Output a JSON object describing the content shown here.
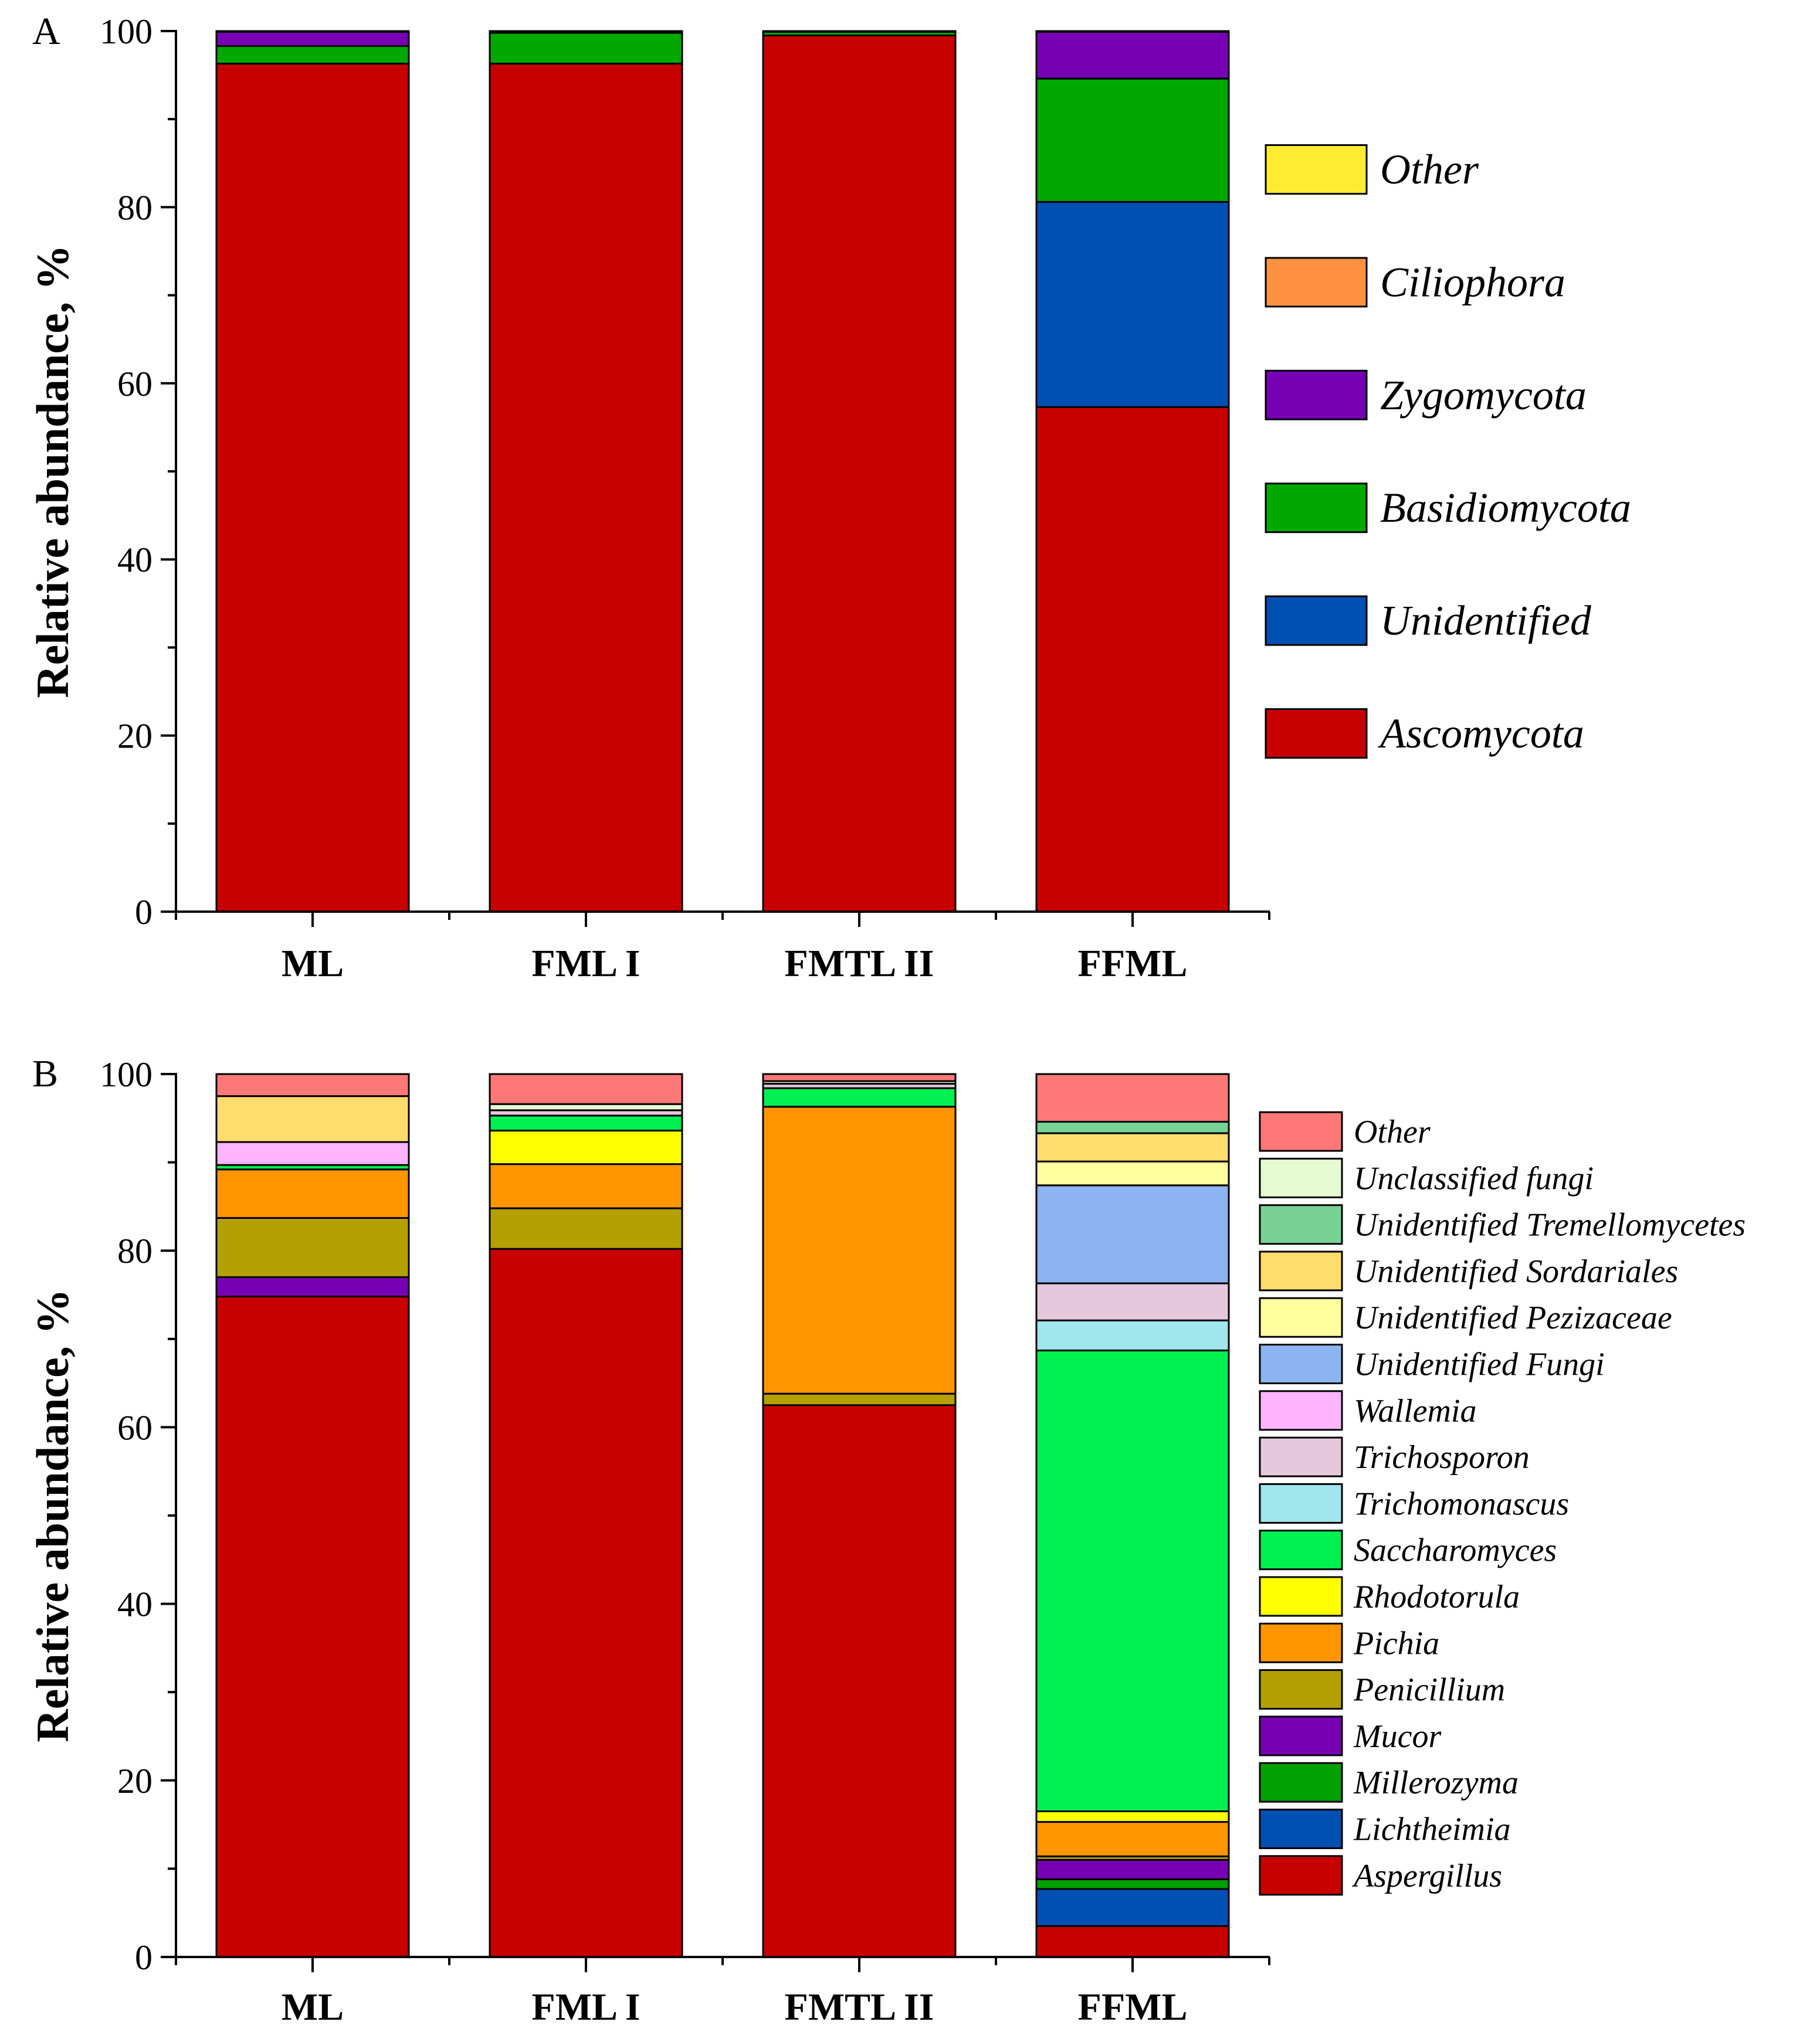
{
  "chart_data": [
    {
      "type": "stacked-bar",
      "panel": "A",
      "ylabel": "Relative abundance, %",
      "ylim": [
        0,
        100
      ],
      "yticks": [
        "0",
        "20",
        "40",
        "60",
        "80",
        "100"
      ],
      "categories": [
        "ML",
        "FML I",
        "FMTL II",
        "FFML"
      ],
      "series": [
        {
          "name": "Ascomycota",
          "color": "#c80000",
          "values": [
            96.3,
            96.3,
            99.5,
            57.3
          ]
        },
        {
          "name": "Unidentified",
          "color": "#0050b4",
          "values": [
            0.0,
            0.0,
            0.0,
            23.3
          ]
        },
        {
          "name": "Basidiomycota",
          "color": "#00a800",
          "values": [
            2.0,
            3.5,
            0.4,
            14.0
          ]
        },
        {
          "name": "Zygomycota",
          "color": "#7800b4",
          "values": [
            1.6,
            0.1,
            0.0,
            5.3
          ]
        },
        {
          "name": "Ciliophora",
          "color": "#ff9140",
          "values": [
            0.0,
            0.0,
            0.0,
            0.0
          ]
        },
        {
          "name": "Other",
          "color": "#ffeb32",
          "values": [
            0.1,
            0.1,
            0.1,
            0.1
          ]
        }
      ],
      "legend_order": [
        "Other",
        "Ciliophora",
        "Zygomycota",
        "Basidiomycota",
        "Unidentified",
        "Ascomycota"
      ]
    },
    {
      "type": "stacked-bar",
      "panel": "B",
      "ylabel": "Relative abundance, %",
      "ylim": [
        0,
        100
      ],
      "yticks": [
        "0",
        "20",
        "40",
        "60",
        "80",
        "100"
      ],
      "categories": [
        "ML",
        "FML I",
        "FMTL II",
        "FFML"
      ],
      "series": [
        {
          "name": "Aspergillus",
          "color": "#c80000",
          "values": [
            74.8,
            80.2,
            62.5,
            3.5
          ]
        },
        {
          "name": "Lichtheimia",
          "color": "#0050b4",
          "values": [
            0.0,
            0.0,
            0.0,
            4.2
          ]
        },
        {
          "name": "Millerozyma",
          "color": "#00a000",
          "values": [
            0.0,
            0.0,
            0.0,
            1.1
          ]
        },
        {
          "name": "Mucor",
          "color": "#7800b4",
          "values": [
            2.2,
            0.0,
            0.0,
            2.2
          ]
        },
        {
          "name": "Penicillium",
          "color": "#b4a000",
          "values": [
            6.7,
            4.6,
            1.3,
            0.4
          ]
        },
        {
          "name": "Pichia",
          "color": "#ff9600",
          "values": [
            5.5,
            5.0,
            32.5,
            3.9
          ]
        },
        {
          "name": "Rhodotorula",
          "color": "#ffff00",
          "values": [
            0.0,
            3.8,
            0.0,
            1.2
          ]
        },
        {
          "name": "Saccharomyces",
          "color": "#00f050",
          "values": [
            0.5,
            1.7,
            2.1,
            52.2
          ]
        },
        {
          "name": "Trichomonascus",
          "color": "#a0e6ec",
          "values": [
            0.0,
            0.0,
            0.0,
            3.4
          ]
        },
        {
          "name": "Trichosporon",
          "color": "#e6c8dc",
          "values": [
            0.0,
            0.6,
            0.5,
            4.2
          ]
        },
        {
          "name": "Wallemia",
          "color": "#ffb4ff",
          "values": [
            2.6,
            0.0,
            0.0,
            0.0
          ]
        },
        {
          "name": "Unidentified Fungi",
          "color": "#8cb4f0",
          "values": [
            0.0,
            0.0,
            0.0,
            11.1
          ]
        },
        {
          "name": "Unidentified Pezizaceae",
          "color": "#ffffa0",
          "values": [
            0.0,
            0.0,
            0.0,
            2.7
          ]
        },
        {
          "name": "Unidentified Sordariales",
          "color": "#ffdc6e",
          "values": [
            5.2,
            0.0,
            0.0,
            3.2
          ]
        },
        {
          "name": "Unidentified Tremellomycetes",
          "color": "#78d296",
          "values": [
            0.0,
            0.0,
            0.0,
            1.3
          ]
        },
        {
          "name": "Unclassified fungi",
          "color": "#e6fad2",
          "values": [
            0.0,
            0.7,
            0.3,
            0.0
          ]
        },
        {
          "name": "Other",
          "color": "#ff7878",
          "values": [
            2.5,
            3.4,
            0.8,
            5.4
          ]
        }
      ],
      "legend_order": [
        "Other",
        "Unclassified fungi",
        "Unidentified Tremellomycetes",
        "Unidentified Sordariales",
        "Unidentified Pezizaceae",
        "Unidentified Fungi",
        "Wallemia",
        "Trichosporon",
        "Trichomonascus",
        "Saccharomyces",
        "Rhodotorula",
        "Pichia",
        "Penicillium",
        "Mucor",
        "Millerozyma",
        "Lichtheimia",
        "Aspergillus"
      ]
    }
  ]
}
